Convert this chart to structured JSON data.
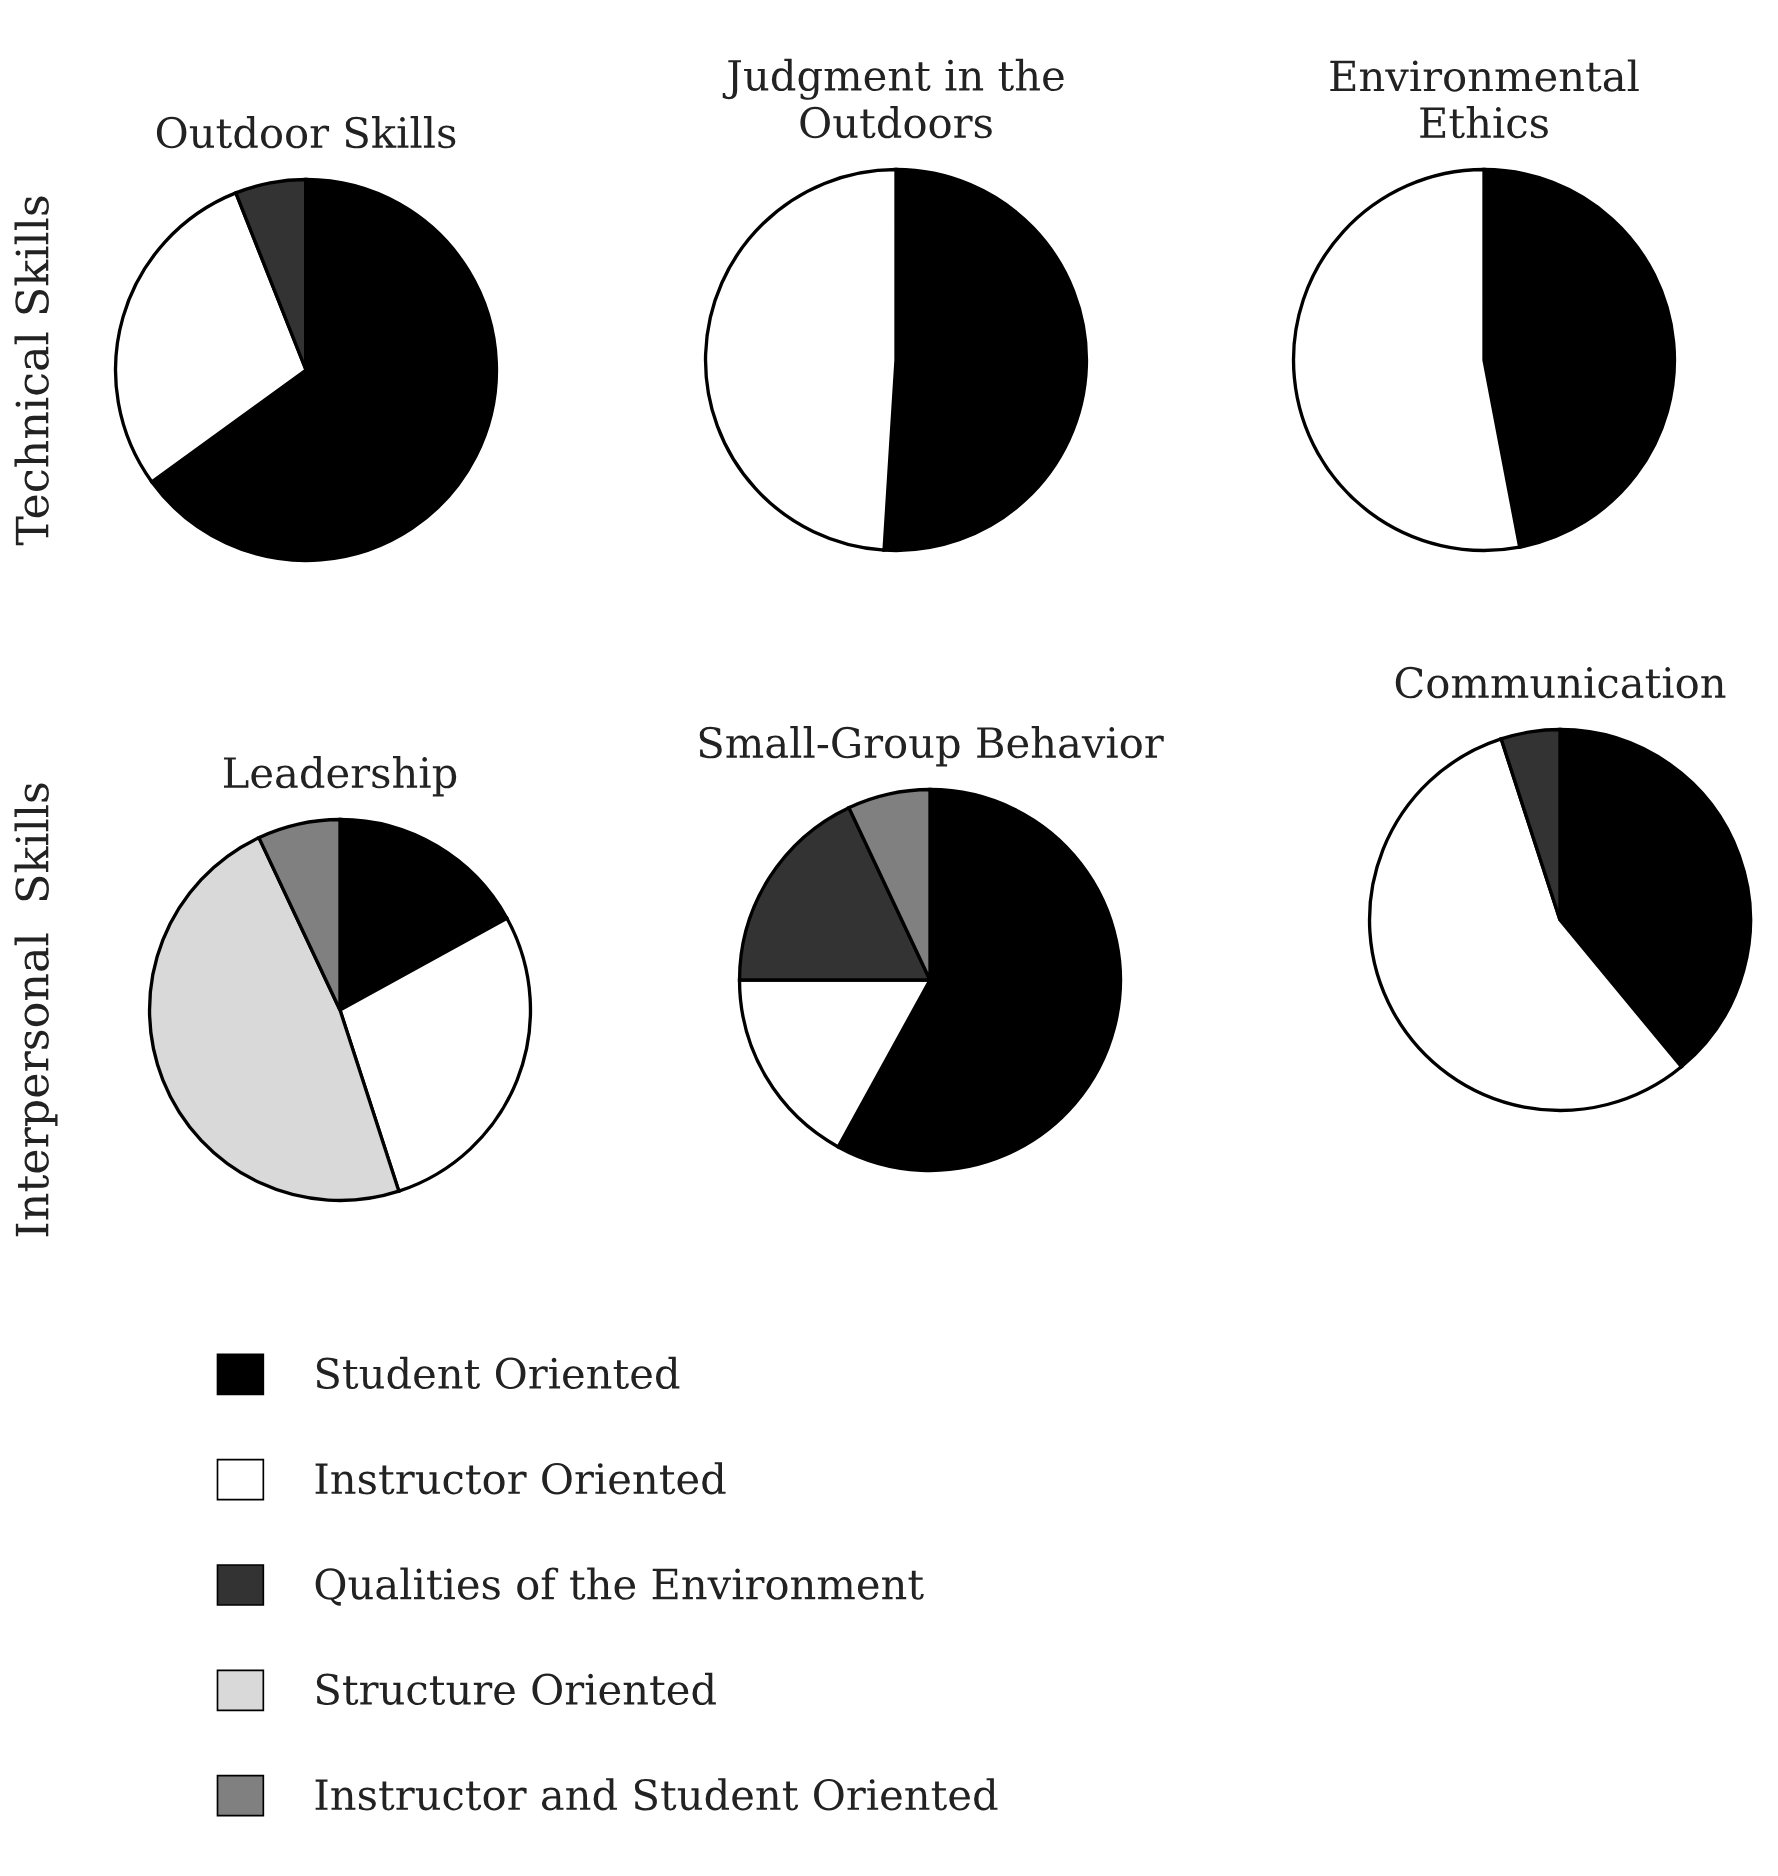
{
  "chart_data": [
    {
      "type": "pie",
      "title": "Outdoor Skills",
      "ylabel": "Technical Skills",
      "legend": "bottom",
      "categories": [
        "Student Oriented",
        "Instructor Oriented",
        "Qualities of the Environment",
        "Structure Oriented",
        "Instructor and Student Oriented"
      ],
      "values": [
        65,
        29,
        6,
        0,
        0
      ],
      "colors": [
        "#000000",
        "#ffffff",
        "#333333",
        "#d9d9d9",
        "#808080"
      ]
    },
    {
      "type": "pie",
      "title": "Judgment in the\nOutdoors",
      "categories": [
        null,
        null
      ],
      "values": [
        51,
        49
      ],
      "colors": [
        "#000000",
        "#ffffff"
      ]
    },
    {
      "type": "pie",
      "title": "Environmental\nEthics",
      "categories": [
        null,
        null
      ],
      "values": [
        47,
        53
      ],
      "colors": [
        "#000000",
        "#ffffff"
      ]
    },
    {
      "type": "pie",
      "title": "Leadership",
      "ylabel": "Interpersonal  Skills",
      "categories": [
        null,
        null,
        null,
        null
      ],
      "values": [
        17,
        28,
        48,
        7
      ],
      "colors": [
        "#000000",
        "#ffffff",
        "#d9d9d9",
        "#808080"
      ]
    },
    {
      "type": "pie",
      "title": "Small-Group Behavior",
      "categories": [
        null,
        null,
        null,
        null
      ],
      "values": [
        58,
        17,
        18,
        7
      ],
      "colors": [
        "#000000",
        "#ffffff",
        "#333333",
        "#808080"
      ]
    },
    {
      "type": "pie",
      "title": "Communication",
      "categories": [
        null,
        null,
        null
      ],
      "values": [
        39,
        56,
        5
      ],
      "colors": [
        "#000000",
        "#ffffff",
        "#333333"
      ]
    }
  ]
}
